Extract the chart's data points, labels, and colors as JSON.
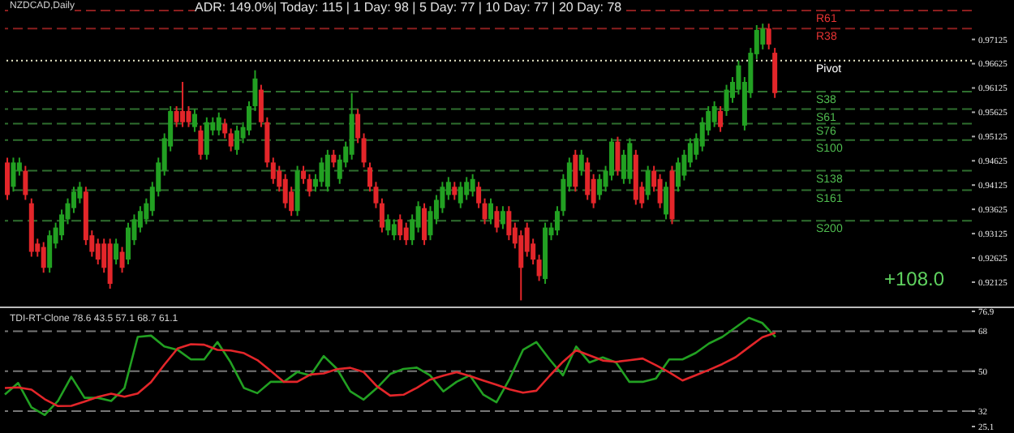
{
  "chart_data": [
    {
      "type": "candlestick",
      "title": "NZDCAD,Daily",
      "tick_labels": "y",
      "annotations": [
        "ADR: 149.0%| Today: 115 | 1 Day: 98 | 5 Day: 77 | 10 Day: 77 | 20 Day: 78",
        "+108.0"
      ],
      "ylim": [
        0.9159,
        0.9777
      ],
      "yticks": [
        0.92125,
        0.92625,
        0.93125,
        0.93625,
        0.94125,
        0.94625,
        0.95125,
        0.95625,
        0.96125,
        0.96625,
        0.97125
      ],
      "ref_lines": [
        {
          "axis": "y",
          "value": 0.9772,
          "label": "R61",
          "color": "#8b1f1f",
          "line_style": "dashed"
        },
        {
          "axis": "y",
          "value": 0.9735,
          "label": "R38",
          "color": "#8b1f1f",
          "line_style": "dashed"
        },
        {
          "axis": "y",
          "value": 0.9669,
          "label": "Pivot",
          "color": "#e8e8c8",
          "line_style": "dotted"
        },
        {
          "axis": "y",
          "value": 0.9605,
          "label": "S38",
          "color": "#2f6f2f",
          "line_style": "dashed"
        },
        {
          "axis": "y",
          "value": 0.9569,
          "label": "S61",
          "color": "#2f6f2f",
          "line_style": "dashed"
        },
        {
          "axis": "y",
          "value": 0.9539,
          "label": "S76",
          "color": "#2f6f2f",
          "line_style": "dashed"
        },
        {
          "axis": "y",
          "value": 0.9505,
          "label": "S100",
          "color": "#2f6f2f",
          "line_style": "dashed"
        },
        {
          "axis": "y",
          "value": 0.9442,
          "label": "S138",
          "color": "#2f6f2f",
          "line_style": "dashed"
        },
        {
          "axis": "y",
          "value": 0.9402,
          "label": "S161",
          "color": "#2f6f2f",
          "line_style": "dashed"
        },
        {
          "axis": "y",
          "value": 0.9339,
          "label": "S200",
          "color": "#2f6f2f",
          "line_style": "dashed"
        }
      ],
      "categories": [
        null,
        null,
        null,
        null,
        null,
        null,
        null,
        null,
        null,
        null,
        null,
        null,
        null,
        null,
        null,
        null,
        null,
        null,
        null,
        null,
        null,
        null,
        null,
        null,
        null,
        null,
        null,
        null,
        null,
        null,
        null,
        null,
        null,
        null,
        null,
        null,
        null,
        null,
        null,
        null,
        null,
        null,
        null,
        null,
        null,
        null,
        null,
        null,
        null,
        null,
        null,
        null,
        null,
        null,
        null,
        null,
        null,
        null,
        null,
        null,
        null,
        null,
        null,
        null,
        null,
        null,
        null,
        null,
        null,
        null,
        null,
        null,
        null,
        null,
        null,
        null,
        null,
        null,
        null,
        null,
        null,
        null,
        null,
        null,
        null,
        null,
        null,
        null,
        null,
        null,
        null,
        null,
        null,
        null,
        null,
        null,
        null,
        null,
        null,
        null,
        null,
        null,
        null,
        null,
        null,
        null,
        null,
        null,
        null,
        null,
        null,
        null,
        null,
        null,
        null,
        null,
        null,
        null,
        null,
        null,
        null,
        null,
        null,
        null,
        null,
        null,
        null,
        null,
        null,
        null,
        null,
        null,
        null,
        null,
        null,
        null,
        null,
        null,
        null,
        null,
        null,
        null,
        null,
        null,
        null,
        null,
        null,
        null,
        null,
        null,
        null,
        null,
        null,
        null,
        null,
        null,
        null,
        null,
        null,
        null
      ],
      "ohlc": [
        [
          0.9459,
          0.9469,
          0.9382,
          0.9392
        ],
        [
          0.9409,
          0.9469,
          0.9399,
          0.9459
        ],
        [
          0.9442,
          0.9469,
          0.9432,
          0.9459
        ],
        [
          0.9442,
          0.9452,
          0.9382,
          0.9392
        ],
        [
          0.9375,
          0.9385,
          0.9265,
          0.9275
        ],
        [
          0.9292,
          0.9302,
          0.9265,
          0.9275
        ],
        [
          0.9285,
          0.9295,
          0.9232,
          0.9242
        ],
        [
          0.9242,
          0.9319,
          0.9232,
          0.9309
        ],
        [
          0.9292,
          0.9335,
          0.9282,
          0.9325
        ],
        [
          0.9309,
          0.9362,
          0.9299,
          0.9352
        ],
        [
          0.9342,
          0.9385,
          0.9332,
          0.9375
        ],
        [
          0.9365,
          0.9409,
          0.9355,
          0.9399
        ],
        [
          0.9385,
          0.9419,
          0.9375,
          0.9409
        ],
        [
          0.9399,
          0.9409,
          0.9289,
          0.9299
        ],
        [
          0.9309,
          0.9319,
          0.9265,
          0.9275
        ],
        [
          0.9292,
          0.9302,
          0.9249,
          0.9259
        ],
        [
          0.9292,
          0.9302,
          0.9232,
          0.9242
        ],
        [
          0.9292,
          0.9302,
          0.9199,
          0.9209
        ],
        [
          0.9259,
          0.9302,
          0.9249,
          0.9292
        ],
        [
          0.9275,
          0.9285,
          0.9232,
          0.9242
        ],
        [
          0.9259,
          0.9335,
          0.9249,
          0.9325
        ],
        [
          0.9299,
          0.9352,
          0.9289,
          0.9342
        ],
        [
          0.9325,
          0.9369,
          0.9315,
          0.9359
        ],
        [
          0.9342,
          0.9385,
          0.9332,
          0.9375
        ],
        [
          0.9359,
          0.9419,
          0.9349,
          0.9409
        ],
        [
          0.9399,
          0.9469,
          0.9389,
          0.9459
        ],
        [
          0.9442,
          0.9519,
          0.9432,
          0.9509
        ],
        [
          0.9492,
          0.9575,
          0.9482,
          0.9565
        ],
        [
          0.9565,
          0.9575,
          0.9532,
          0.9542
        ],
        [
          0.9565,
          0.9625,
          0.9532,
          0.9542
        ],
        [
          0.9565,
          0.9575,
          0.9532,
          0.9542
        ],
        [
          0.9532,
          0.9569,
          0.9522,
          0.9559
        ],
        [
          0.9525,
          0.9535,
          0.9465,
          0.9475
        ],
        [
          0.9475,
          0.9552,
          0.9465,
          0.9542
        ],
        [
          0.9525,
          0.9552,
          0.9515,
          0.9542
        ],
        [
          0.9525,
          0.9562,
          0.9515,
          0.9552
        ],
        [
          0.9539,
          0.9549,
          0.9509,
          0.9519
        ],
        [
          0.9519,
          0.9529,
          0.9482,
          0.9492
        ],
        [
          0.9485,
          0.9535,
          0.9475,
          0.9525
        ],
        [
          0.9509,
          0.9542,
          0.9499,
          0.9532
        ],
        [
          0.9525,
          0.9585,
          0.9515,
          0.9575
        ],
        [
          0.9575,
          0.9649,
          0.9565,
          0.9632
        ],
        [
          0.9609,
          0.9619,
          0.9532,
          0.9542
        ],
        [
          0.9542,
          0.9552,
          0.9449,
          0.9459
        ],
        [
          0.9459,
          0.9469,
          0.9415,
          0.9425
        ],
        [
          0.9442,
          0.9452,
          0.9399,
          0.9409
        ],
        [
          0.9425,
          0.9435,
          0.9365,
          0.9375
        ],
        [
          0.9399,
          0.9409,
          0.9349,
          0.9359
        ],
        [
          0.9359,
          0.9452,
          0.9349,
          0.9442
        ],
        [
          0.9442,
          0.9452,
          0.9415,
          0.9425
        ],
        [
          0.9425,
          0.9435,
          0.9389,
          0.9399
        ],
        [
          0.9409,
          0.9435,
          0.9399,
          0.9425
        ],
        [
          0.9419,
          0.9469,
          0.9409,
          0.9459
        ],
        [
          0.9409,
          0.9485,
          0.9399,
          0.9475
        ],
        [
          0.9475,
          0.9485,
          0.9449,
          0.9459
        ],
        [
          0.9425,
          0.9475,
          0.9415,
          0.9465
        ],
        [
          0.9459,
          0.9502,
          0.9449,
          0.9492
        ],
        [
          0.9475,
          0.9602,
          0.9465,
          0.9559
        ],
        [
          0.9559,
          0.9569,
          0.9499,
          0.9509
        ],
        [
          0.9509,
          0.9519,
          0.9449,
          0.9459
        ],
        [
          0.9449,
          0.9459,
          0.9399,
          0.9409
        ],
        [
          0.9409,
          0.9419,
          0.9365,
          0.9375
        ],
        [
          0.9375,
          0.9385,
          0.9315,
          0.9325
        ],
        [
          0.9319,
          0.9352,
          0.9309,
          0.9342
        ],
        [
          0.9309,
          0.9342,
          0.9299,
          0.9332
        ],
        [
          0.9342,
          0.9352,
          0.9299,
          0.9309
        ],
        [
          0.9325,
          0.9335,
          0.9289,
          0.9299
        ],
        [
          0.9299,
          0.9352,
          0.9289,
          0.9342
        ],
        [
          0.9325,
          0.9379,
          0.9315,
          0.9369
        ],
        [
          0.9365,
          0.9375,
          0.9289,
          0.9299
        ],
        [
          0.9309,
          0.9369,
          0.9299,
          0.9359
        ],
        [
          0.9342,
          0.9392,
          0.9332,
          0.9382
        ],
        [
          0.9365,
          0.9419,
          0.9355,
          0.9409
        ],
        [
          0.9392,
          0.9429,
          0.9382,
          0.9419
        ],
        [
          0.9409,
          0.9419,
          0.9382,
          0.9392
        ],
        [
          0.9375,
          0.9419,
          0.9365,
          0.9409
        ],
        [
          0.9392,
          0.9429,
          0.9382,
          0.9419
        ],
        [
          0.9399,
          0.9435,
          0.9389,
          0.9425
        ],
        [
          0.9409,
          0.9419,
          0.9365,
          0.9375
        ],
        [
          0.9375,
          0.9385,
          0.9332,
          0.9342
        ],
        [
          0.9342,
          0.9385,
          0.9332,
          0.9375
        ],
        [
          0.9359,
          0.9369,
          0.9315,
          0.9325
        ],
        [
          0.9332,
          0.9369,
          0.9322,
          0.9359
        ],
        [
          0.9359,
          0.9369,
          0.9299,
          0.9309
        ],
        [
          0.9325,
          0.9335,
          0.9282,
          0.9292
        ],
        [
          0.9309,
          0.9319,
          0.9175,
          0.9242
        ],
        [
          0.9325,
          0.9335,
          0.9265,
          0.9275
        ],
        [
          0.9292,
          0.9302,
          0.9249,
          0.9259
        ],
        [
          0.9259,
          0.9269,
          0.9215,
          0.9225
        ],
        [
          0.9219,
          0.9335,
          0.9209,
          0.9325
        ],
        [
          0.9309,
          0.9335,
          0.9299,
          0.9325
        ],
        [
          0.9319,
          0.9369,
          0.9309,
          0.9359
        ],
        [
          0.9359,
          0.9435,
          0.9349,
          0.9425
        ],
        [
          0.9409,
          0.9469,
          0.9399,
          0.9459
        ],
        [
          0.9475,
          0.9485,
          0.9399,
          0.9409
        ],
        [
          0.9442,
          0.9485,
          0.9432,
          0.9475
        ],
        [
          0.9459,
          0.9469,
          0.9382,
          0.9392
        ],
        [
          0.9425,
          0.9435,
          0.9365,
          0.9375
        ],
        [
          0.9392,
          0.9435,
          0.9382,
          0.9425
        ],
        [
          0.9409,
          0.9452,
          0.9399,
          0.9442
        ],
        [
          0.9432,
          0.9509,
          0.9422,
          0.9502
        ],
        [
          0.9502,
          0.9512,
          0.9432,
          0.9442
        ],
        [
          0.9425,
          0.9485,
          0.9415,
          0.9475
        ],
        [
          0.9425,
          0.9509,
          0.9415,
          0.9499
        ],
        [
          0.9475,
          0.9485,
          0.9372,
          0.9382
        ],
        [
          0.9409,
          0.9419,
          0.9365,
          0.9375
        ],
        [
          0.9392,
          0.9452,
          0.9382,
          0.9442
        ],
        [
          0.9442,
          0.9452,
          0.9399,
          0.9409
        ],
        [
          0.9425,
          0.9435,
          0.9365,
          0.9375
        ],
        [
          0.9352,
          0.9419,
          0.9342,
          0.9409
        ],
        [
          0.9442,
          0.9452,
          0.9332,
          0.9342
        ],
        [
          0.9409,
          0.9469,
          0.9399,
          0.9459
        ],
        [
          0.9432,
          0.9485,
          0.9422,
          0.9475
        ],
        [
          0.9459,
          0.9509,
          0.9449,
          0.9499
        ],
        [
          0.9475,
          0.9519,
          0.9465,
          0.9509
        ],
        [
          0.9492,
          0.9552,
          0.9482,
          0.9542
        ],
        [
          0.9525,
          0.9575,
          0.9515,
          0.9565
        ],
        [
          0.9542,
          0.9585,
          0.9532,
          0.9575
        ],
        [
          0.9565,
          0.9575,
          0.9522,
          0.9532
        ],
        [
          0.9565,
          0.9619,
          0.9555,
          0.9609
        ],
        [
          0.9592,
          0.9635,
          0.9582,
          0.9625
        ],
        [
          0.9609,
          0.9669,
          0.9599,
          0.9659
        ],
        [
          0.9535,
          0.9635,
          0.9525,
          0.9625
        ],
        [
          0.9602,
          0.9695,
          0.9592,
          0.9685
        ],
        [
          0.9682,
          0.9742,
          0.9672,
          0.9732
        ],
        [
          0.9702,
          0.9745,
          0.9692,
          0.9735
        ],
        [
          0.9735,
          0.9745,
          0.9692,
          0.9702
        ],
        [
          0.9685,
          0.9695,
          0.9592,
          0.9602
        ],
        null,
        null,
        null,
        null,
        null,
        null,
        null,
        null,
        null,
        null,
        null,
        null,
        null,
        null,
        null,
        null,
        null,
        null,
        null,
        null,
        null,
        null,
        null,
        null,
        null,
        null,
        null,
        null,
        null,
        null,
        null,
        null
      ]
    },
    {
      "type": "line",
      "title": "TDI-RT-Clone 78.6 43.5 57.1 68.7 61.1",
      "tick_labels": "y",
      "ylim": [
        25.1,
        76.9
      ],
      "yticks": [
        25.1,
        32,
        50,
        68,
        76.9
      ],
      "ref_lines": [
        {
          "axis": "y",
          "value": 32,
          "color": "#777777",
          "line_style": "dashed"
        },
        {
          "axis": "y",
          "value": 50,
          "color": "#777777",
          "line_style": "dashed"
        },
        {
          "axis": "y",
          "value": 68,
          "color": "#777777",
          "line_style": "dashed"
        }
      ],
      "categories": [
        null,
        null,
        null,
        null,
        null,
        null,
        null,
        null,
        null,
        null,
        null,
        null,
        null,
        null,
        null,
        null,
        null,
        null,
        null,
        null,
        null,
        null,
        null,
        null,
        null,
        null,
        null,
        null,
        null,
        null,
        null,
        null,
        null,
        null,
        null,
        null,
        null,
        null,
        null,
        null,
        null,
        null,
        null,
        null,
        null,
        null,
        null,
        null,
        null,
        null,
        null,
        null,
        null,
        null,
        null,
        null,
        null,
        null,
        null
      ],
      "series": [
        {
          "color": "#22a022",
          "values": [
            39.5,
            44.7,
            33.7,
            30.3,
            36.6,
            47.5,
            38.0,
            38.0,
            36.6,
            42.4,
            65.4,
            66.0,
            61.1,
            59.6,
            55.3,
            55.3,
            63.1,
            53.9,
            42.4,
            40.1,
            45.2,
            45.2,
            49.6,
            48.1,
            56.8,
            51.0,
            40.9,
            37.2,
            42.4,
            48.7,
            51.0,
            51.6,
            48.1,
            40.9,
            45.2,
            48.1,
            39.5,
            36.0,
            46.7,
            59.6,
            63.1,
            55.3,
            48.1,
            61.1,
            53.9,
            56.2,
            53.9,
            45.2,
            45.2,
            46.7,
            55.3,
            55.3,
            58.2,
            62.5,
            65.4,
            69.7,
            74.0,
            71.7,
            65.4
          ]
        },
        {
          "color": "#e3262a",
          "values": [
            42.4,
            42.7,
            41.7,
            37.4,
            34.3,
            34.4,
            36.3,
            38.4,
            39.9,
            38.5,
            40.0,
            45.1,
            52.9,
            60.2,
            62.1,
            61.9,
            59.6,
            59.3,
            58.1,
            55.0,
            50.2,
            45.2,
            45.2,
            48.5,
            49.0,
            50.9,
            51.5,
            49.6,
            43.2,
            39.0,
            39.4,
            42.5,
            46.2,
            48.0,
            49.5,
            47.8,
            45.8,
            43.9,
            41.8,
            40.3,
            41.2,
            47.9,
            54.2,
            59.4,
            57.1,
            54.8,
            54.2,
            54.9,
            55.7,
            52.7,
            49.5,
            45.8,
            48.2,
            50.6,
            53.2,
            56.3,
            60.8,
            65.2,
            67.3
          ]
        }
      ]
    }
  ]
}
